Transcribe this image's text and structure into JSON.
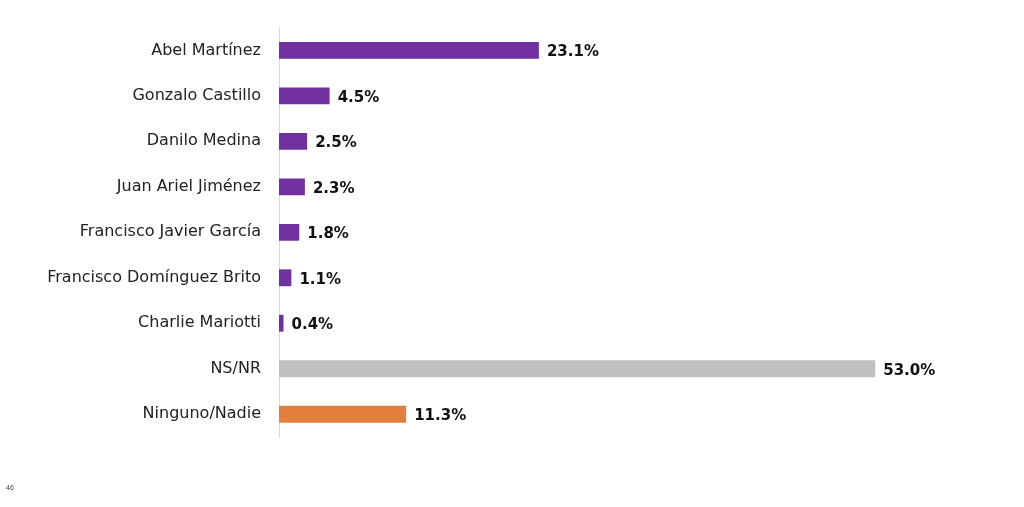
{
  "chart_data": {
    "type": "bar",
    "orientation": "horizontal",
    "categories": [
      "Abel Martínez",
      "Gonzalo Castillo",
      "Danilo Medina",
      "Juan Ariel Jiménez",
      "Francisco Javier García",
      "Francisco Domínguez Brito",
      "Charlie Mariotti",
      "NS/NR",
      "Ninguno/Nadie"
    ],
    "values": [
      23.1,
      4.5,
      2.5,
      2.3,
      1.8,
      1.1,
      0.4,
      53.0,
      11.3
    ],
    "value_labels": [
      "23.1%",
      "4.5%",
      "2.5%",
      "2.3%",
      "1.8%",
      "1.1%",
      "0.4%",
      "53.0%",
      "11.3%"
    ],
    "colors": [
      "#7030a0",
      "#7030a0",
      "#7030a0",
      "#7030a0",
      "#7030a0",
      "#7030a0",
      "#7030a0",
      "#c0c0c0",
      "#e07f3e"
    ],
    "annotations": [
      "46"
    ],
    "legend": false
  }
}
